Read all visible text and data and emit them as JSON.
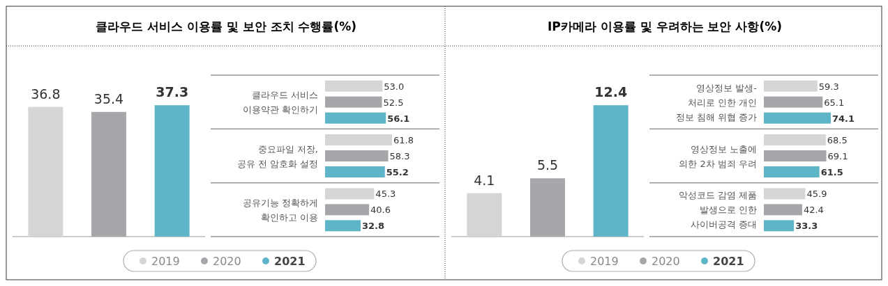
{
  "chart_data": [
    {
      "type": "bar",
      "title": "클라우드 서비스 이용률 및 보안 조치 수행률(%)",
      "categories": [
        null,
        null,
        null
      ],
      "stacked": true,
      "data_labels": true,
      "series": [
        {
          "name": "2019",
          "color": "#d4d5d6",
          "values": [
            36.8,
            null,
            null
          ]
        },
        {
          "name": "2020",
          "color": "#a5a7aa",
          "values": [
            null,
            35.4,
            null
          ]
        },
        {
          "name": "2021",
          "color": "#5fb5c8",
          "values": [
            null,
            null,
            37.3
          ]
        }
      ],
      "legend": "bottom"
    },
    {
      "type": "bar",
      "orientation": "horizontal",
      "categories": [
        "클라우드 서비스\n이용약관 확인하기",
        "중요파일 저장,\n공유 전 암호화 설정",
        "공유기능 정확하게\n확인하고 이용"
      ],
      "series": [
        {
          "color": "#d4d5d6",
          "values": [
            53.0,
            61.8,
            45.3
          ],
          "value_labels": [
            "53.0",
            "61.8",
            "45.3"
          ]
        },
        {
          "color": "#a5a7aa",
          "values": [
            52.5,
            58.3,
            40.6
          ],
          "value_labels": [
            "52.5",
            "58.3",
            "40.6"
          ]
        },
        {
          "color": "#5fb5c8",
          "values": [
            56.1,
            55.2,
            32.8
          ],
          "value_labels": [
            "56.1",
            "55.2",
            "32.8"
          ]
        }
      ]
    },
    {
      "type": "bar",
      "title": "IP카메라 이용률 및 우려하는 보안 사항(%)",
      "categories": [
        null,
        null,
        null
      ],
      "stacked": true,
      "data_labels": true,
      "series": [
        {
          "name": "2019",
          "color": "#d4d5d6",
          "values": [
            4.1,
            null,
            null
          ]
        },
        {
          "name": "2020",
          "color": "#a5a7aa",
          "values": [
            null,
            5.5,
            null
          ]
        },
        {
          "name": "2021",
          "color": "#5fb5c8",
          "values": [
            null,
            null,
            12.4
          ]
        }
      ],
      "legend": "bottom"
    },
    {
      "type": "bar",
      "orientation": "horizontal",
      "categories": [
        "영상정보 발생-\n처리로 인한 개인\n정보 침해 위협 증가",
        "영상정보 노출에\n의한 2차 범죄 우려",
        "악성코드 감염 제품\n발생으로 인한\n사이버공격 증대"
      ],
      "series": [
        {
          "color": "#d4d5d6",
          "values": [
            59.3,
            68.5,
            45.9
          ],
          "value_labels": [
            "59.3",
            "68.5",
            "45.9"
          ]
        },
        {
          "color": "#a5a7aa",
          "values": [
            65.1,
            69.1,
            42.4
          ],
          "value_labels": [
            "65.1",
            "69.1",
            "42.4"
          ]
        },
        {
          "color": "#5fb5c8",
          "values": [
            74.1,
            61.5,
            33.3
          ],
          "value_labels": [
            "74.1",
            "61.5",
            "33.3"
          ]
        }
      ]
    }
  ]
}
